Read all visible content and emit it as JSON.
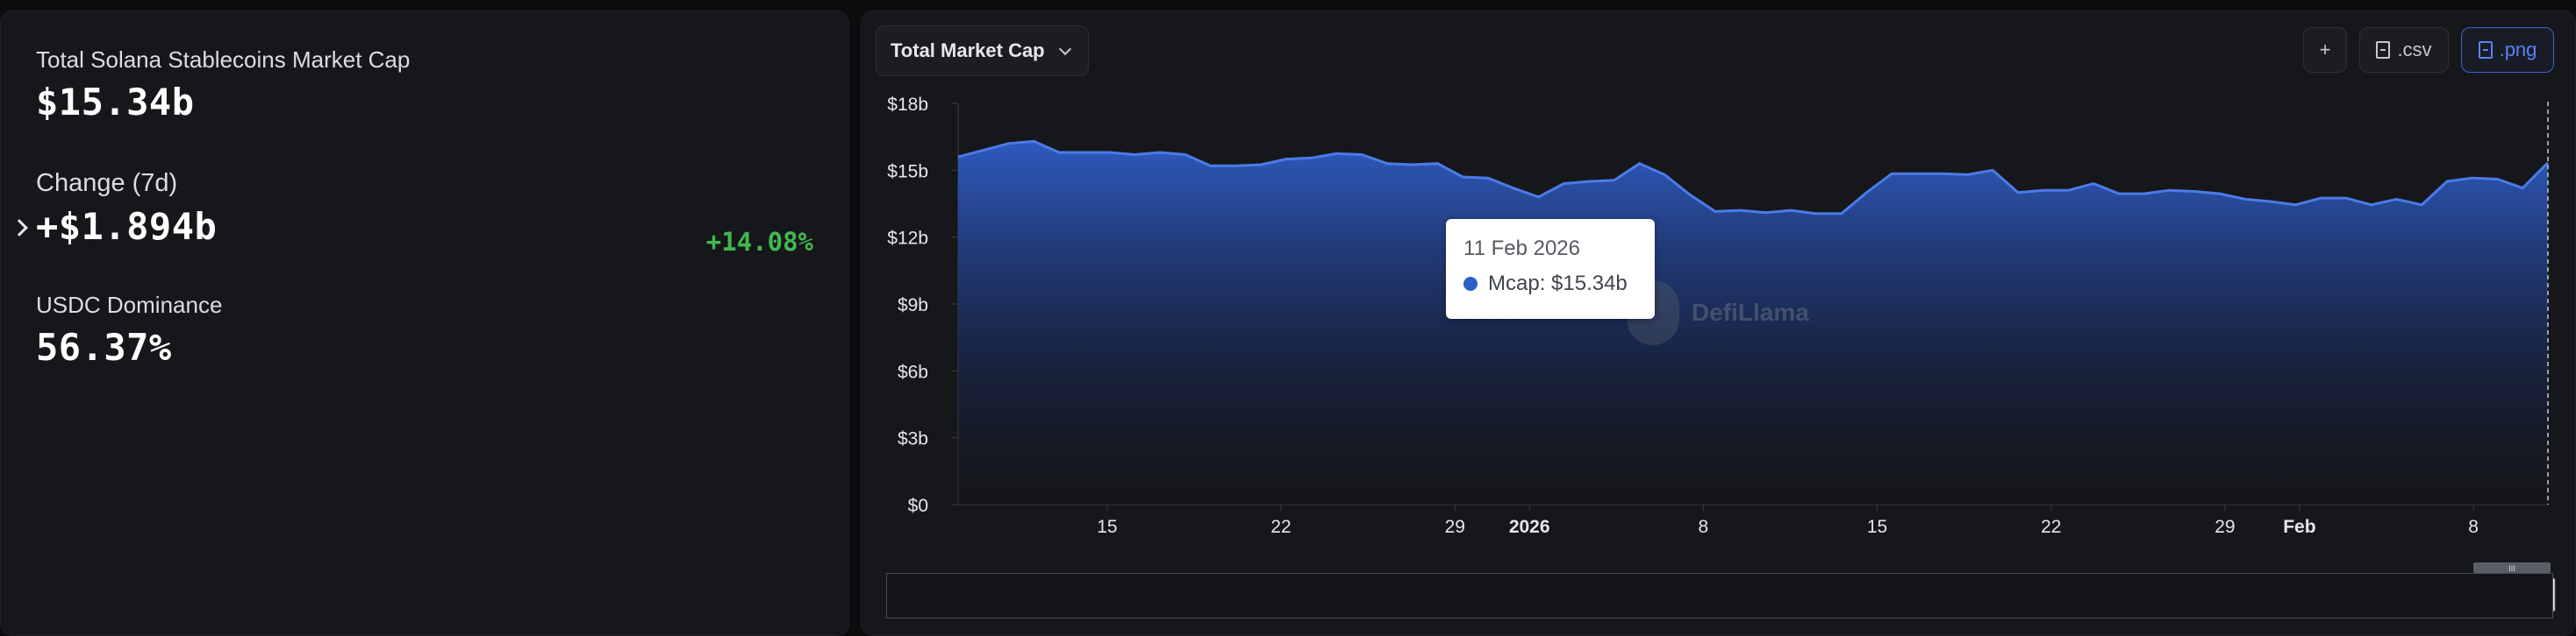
{
  "stats": {
    "total_label": "Total Solana Stablecoins Market Cap",
    "total_value": "$15.34b",
    "change_label": "Change (7d)",
    "change_value": "+$1.894b",
    "change_pct": "+14.08%",
    "dominance_label": "USDC Dominance",
    "dominance_value": "56.37%"
  },
  "toolbar": {
    "metric_select": "Total Market Cap",
    "add_label": "+",
    "csv_label": ".csv",
    "png_label": ".png"
  },
  "tooltip": {
    "date": "11 Feb 2026",
    "series_label": "Mcap: $15.34b"
  },
  "watermark": "DefiLlama",
  "colors": {
    "accent": "#3b63d6",
    "positive": "#3fb950",
    "area_top": "#2f5ec8",
    "line": "#4c7be8"
  },
  "chart_data": {
    "type": "area",
    "series": [
      {
        "name": "Mcap",
        "values": [
          15.6,
          15.9,
          16.2,
          16.3,
          15.8,
          15.8,
          15.8,
          15.7,
          15.8,
          15.7,
          15.2,
          15.2,
          15.25,
          15.5,
          15.55,
          15.75,
          15.7,
          15.3,
          15.25,
          15.3,
          14.7,
          14.65,
          14.2,
          13.8,
          14.4,
          14.5,
          14.55,
          15.3,
          14.8,
          13.9,
          13.15,
          13.2,
          13.1,
          13.2,
          13.05,
          13.05,
          14.0,
          14.85,
          14.85,
          14.85,
          14.8,
          15.0,
          14.0,
          14.1,
          14.1,
          14.4,
          13.95,
          13.95,
          14.1,
          14.05,
          13.95,
          13.7,
          13.6,
          13.45,
          13.75,
          13.75,
          13.45,
          13.7,
          13.45,
          14.5,
          14.65,
          14.6,
          14.2,
          15.34
        ]
      }
    ],
    "x_start": "2025-12-09",
    "x_end": "2026-02-11",
    "x_ticks": [
      "15",
      "22",
      "29",
      "2026",
      "8",
      "15",
      "22",
      "29",
      "Feb",
      "8"
    ],
    "x_tick_dates": [
      "2025-12-15",
      "2025-12-22",
      "2025-12-29",
      "2026-01-01",
      "2026-01-08",
      "2026-01-15",
      "2026-01-22",
      "2026-01-29",
      "2026-02-01",
      "2026-02-08"
    ],
    "y_ticks": [
      "$0",
      "$3b",
      "$6b",
      "$9b",
      "$12b",
      "$15b",
      "$18b"
    ],
    "ylim": [
      0,
      18
    ],
    "y_unit": "billions USD",
    "grid": false
  }
}
